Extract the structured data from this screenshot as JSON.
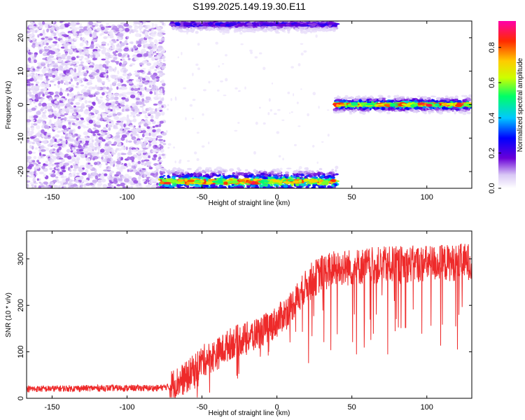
{
  "chart_data": [
    {
      "type": "heatmap",
      "title": "S199.2025.149.19.30.E11",
      "xlabel": "Height of straight line (km)",
      "ylabel": "Frequency (Hz)",
      "xlim": [
        -167,
        130
      ],
      "ylim": [
        -25,
        25
      ],
      "x_ticks": [
        -150,
        -100,
        -50,
        0,
        50,
        100
      ],
      "y_ticks": [
        -20,
        -10,
        0,
        10,
        20
      ],
      "colorbar": {
        "label": "Normalized spectral amplitude",
        "range": [
          0,
          0.95
        ],
        "ticks": [
          "0.0",
          "0.2",
          "0.4",
          "0.6",
          "0.8"
        ],
        "colormap": [
          "#ffffff",
          "#d9c8f5",
          "#6a00d8",
          "#0000ff",
          "#00c8ff",
          "#00ff66",
          "#ccff00",
          "#ffcc00",
          "#ff2a00",
          "#ff00aa"
        ]
      },
      "features": [
        {
          "description": "diffuse noise",
          "x_range": [
            -167,
            -75
          ],
          "freq_range": [
            -25,
            25
          ],
          "amplitude_range": [
            0.0,
            0.15
          ]
        },
        {
          "description": "band near lower edge",
          "x_range": [
            -78,
            40
          ],
          "freq_range": [
            -25,
            -21
          ],
          "amplitude_peak": 0.9
        },
        {
          "description": "band near upper edge",
          "x_range": [
            -70,
            40
          ],
          "freq_range": [
            23,
            25
          ],
          "amplitude_peak": 0.3
        },
        {
          "description": "band at zero frequency",
          "x_range": [
            39,
            129
          ],
          "freq_range": [
            -1,
            1
          ],
          "amplitude_peak": 0.9
        }
      ]
    },
    {
      "type": "line",
      "xlabel": "Height of straight line (km)",
      "ylabel": "SNR (10 * v/v)",
      "xlim": [
        -167,
        130
      ],
      "ylim": [
        0,
        360
      ],
      "x_ticks": [
        -150,
        -100,
        -50,
        0,
        50,
        100
      ],
      "y_ticks": [
        0,
        100,
        200,
        300
      ],
      "color": "#ee2a2a",
      "trend": {
        "x": [
          -167,
          -120,
          -80,
          -72,
          -60,
          -50,
          -40,
          -30,
          -20,
          -10,
          0,
          10,
          20,
          30,
          40,
          50,
          60,
          80,
          100,
          120,
          130
        ],
        "y": [
          20,
          22,
          22,
          25,
          45,
          80,
          95,
          120,
          130,
          145,
          165,
          200,
          245,
          270,
          280,
          282,
          285,
          288,
          290,
          292,
          295
        ]
      }
    }
  ]
}
